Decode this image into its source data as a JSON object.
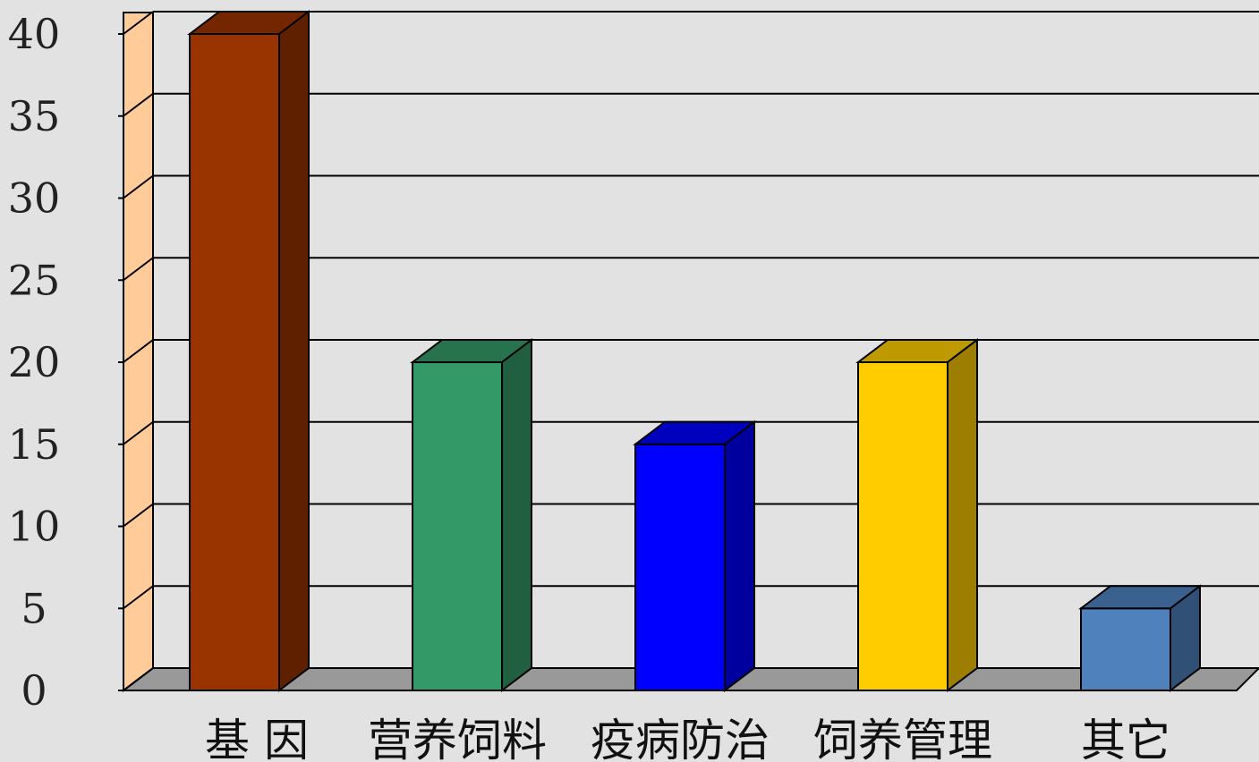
{
  "chart_data": {
    "type": "bar",
    "style": "3d-column",
    "title": "",
    "xlabel": "",
    "ylabel": "",
    "categories": [
      "基 因",
      "营养饲料",
      "疫病防治",
      "饲养管理",
      "其它"
    ],
    "values": [
      40,
      20,
      15,
      20,
      5
    ],
    "colors": [
      "#993300",
      "#339966",
      "#0000ff",
      "#ffcc00",
      "#4f81bd"
    ],
    "ylim": [
      0,
      40
    ],
    "yticks": [
      "0",
      "5",
      "10",
      "15",
      "20",
      "25",
      "30",
      "35",
      "40"
    ],
    "grid": true,
    "legend": "none",
    "wall_color": "#ffcc99",
    "floor_color": "#999999",
    "background": "#e2e2e2"
  }
}
